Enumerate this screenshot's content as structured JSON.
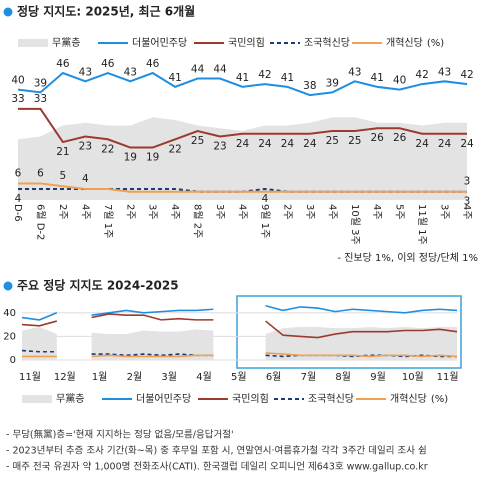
{
  "chart_data": [
    {
      "type": "line",
      "title": "정당 지지도: 2025년, 최근 6개월",
      "categories": [
        "D-6",
        "6월 D-2",
        "2주",
        "4주",
        "7월 1주",
        "2주",
        "3주",
        "4주",
        "8월 2주",
        "3주",
        "4주",
        "9월 1주",
        "2주",
        "3주",
        "4주",
        "10월 3주",
        "4주",
        "5주",
        "11월 1주",
        "3주",
        "4주"
      ],
      "ylim": [
        0,
        50
      ],
      "legend_suffix": "(%)",
      "note": "- 진보당 1%, 이외 정당/단체 1%",
      "series": [
        {
          "name": "무黨층",
          "color": "#e3e3e3",
          "style": "area",
          "values": [
            22,
            23,
            27,
            28,
            27,
            27,
            30,
            29,
            27,
            26,
            25,
            27,
            27,
            28,
            30,
            30,
            28,
            28,
            27,
            28,
            28
          ]
        },
        {
          "name": "더불어민주당",
          "color": "#1e8fe0",
          "style": "line",
          "values": [
            40,
            39,
            46,
            43,
            46,
            43,
            46,
            41,
            44,
            44,
            41,
            42,
            41,
            38,
            39,
            43,
            41,
            40,
            42,
            43,
            42
          ]
        },
        {
          "name": "국민의힘",
          "color": "#9b3a2e",
          "style": "line",
          "values": [
            33,
            33,
            21,
            23,
            22,
            19,
            19,
            22,
            25,
            23,
            24,
            24,
            24,
            24,
            25,
            25,
            26,
            26,
            24,
            24,
            24
          ]
        },
        {
          "name": "조국혁신당",
          "color": "#1a3a7a",
          "style": "dashed",
          "values": [
            4,
            4,
            4,
            4,
            4,
            4,
            4,
            4,
            3,
            3,
            3,
            4,
            3,
            3,
            3,
            3,
            3,
            3,
            3,
            3,
            3
          ],
          "value_labels": [
            "4",
            null,
            null,
            null,
            null,
            null,
            null,
            null,
            null,
            null,
            null,
            "4",
            null,
            null,
            null,
            null,
            null,
            null,
            null,
            null,
            "3"
          ]
        },
        {
          "name": "개혁신당",
          "color": "#f0a050",
          "style": "line",
          "values": [
            6,
            6,
            5,
            4,
            4,
            3,
            3,
            3,
            3,
            3,
            3,
            3,
            3,
            3,
            3,
            3,
            3,
            3,
            3,
            3,
            3
          ],
          "value_labels": [
            "6",
            "6",
            "5",
            "4",
            null,
            null,
            null,
            null,
            null,
            null,
            null,
            null,
            null,
            null,
            null,
            null,
            null,
            null,
            null,
            null,
            "3"
          ]
        }
      ]
    },
    {
      "type": "line",
      "title": "주요 정당 지지도 2024-2025",
      "categories": [
        "11월",
        null,
        "12월",
        null,
        "1월",
        null,
        "2월",
        null,
        "3월",
        null,
        "4월",
        null,
        "5월",
        null,
        "6월",
        null,
        "7월",
        null,
        "8월",
        null,
        "9월",
        null,
        "10월",
        null,
        "11월",
        null
      ],
      "ylim": [
        0,
        50
      ],
      "yticks": [
        0,
        20,
        40
      ],
      "grid": true,
      "legend_suffix": "(%)",
      "footnotes": [
        "- 무당(無黨)층='현재 지지하는 정당 없음/모름/응답거절'",
        "- 2023년부터 추증 조사 기간(화~목) 중 후무일 포함 시, 연말연시·여름휴가철 각각 3주간 데일리 조사 쉼",
        "- 매주 전국 유권자 약 1,000명 전화조사(CATI). 한국갤럽 데일리 오피니언 제643호 www.gallup.co.kr"
      ],
      "series": [
        {
          "name": "무黨층",
          "color": "#e3e3e3",
          "style": "area",
          "values": [
            25,
            28,
            22,
            null,
            23,
            22,
            22,
            25,
            24,
            24,
            26,
            25,
            null,
            null,
            22,
            27,
            28,
            28,
            27,
            27,
            28,
            27,
            28,
            27,
            28,
            28
          ]
        },
        {
          "name": "더불어민주당",
          "color": "#1e8fe0",
          "style": "line",
          "values": [
            36,
            34,
            40,
            null,
            38,
            40,
            42,
            40,
            41,
            42,
            42,
            43,
            null,
            null,
            46,
            42,
            45,
            44,
            41,
            43,
            42,
            41,
            40,
            42,
            43,
            42
          ]
        },
        {
          "name": "국민의힘",
          "color": "#9b3a2e",
          "style": "line",
          "values": [
            30,
            29,
            33,
            null,
            36,
            39,
            38,
            38,
            34,
            35,
            34,
            34,
            null,
            null,
            33,
            21,
            20,
            19,
            22,
            24,
            24,
            24,
            25,
            25,
            26,
            24
          ]
        },
        {
          "name": "조국혁신당",
          "color": "#1a3a7a",
          "style": "dashed",
          "values": [
            8,
            7,
            7,
            null,
            5,
            5,
            4,
            5,
            4,
            5,
            4,
            4,
            null,
            null,
            4,
            3,
            4,
            4,
            4,
            3,
            4,
            4,
            3,
            4,
            3,
            3
          ]
        },
        {
          "name": "개혁신당",
          "color": "#f0a050",
          "style": "line",
          "values": [
            3,
            3,
            3,
            null,
            3,
            4,
            3,
            3,
            3,
            3,
            4,
            4,
            null,
            null,
            6,
            5,
            4,
            4,
            4,
            4,
            3,
            4,
            4,
            3,
            4,
            3
          ]
        }
      ]
    }
  ]
}
